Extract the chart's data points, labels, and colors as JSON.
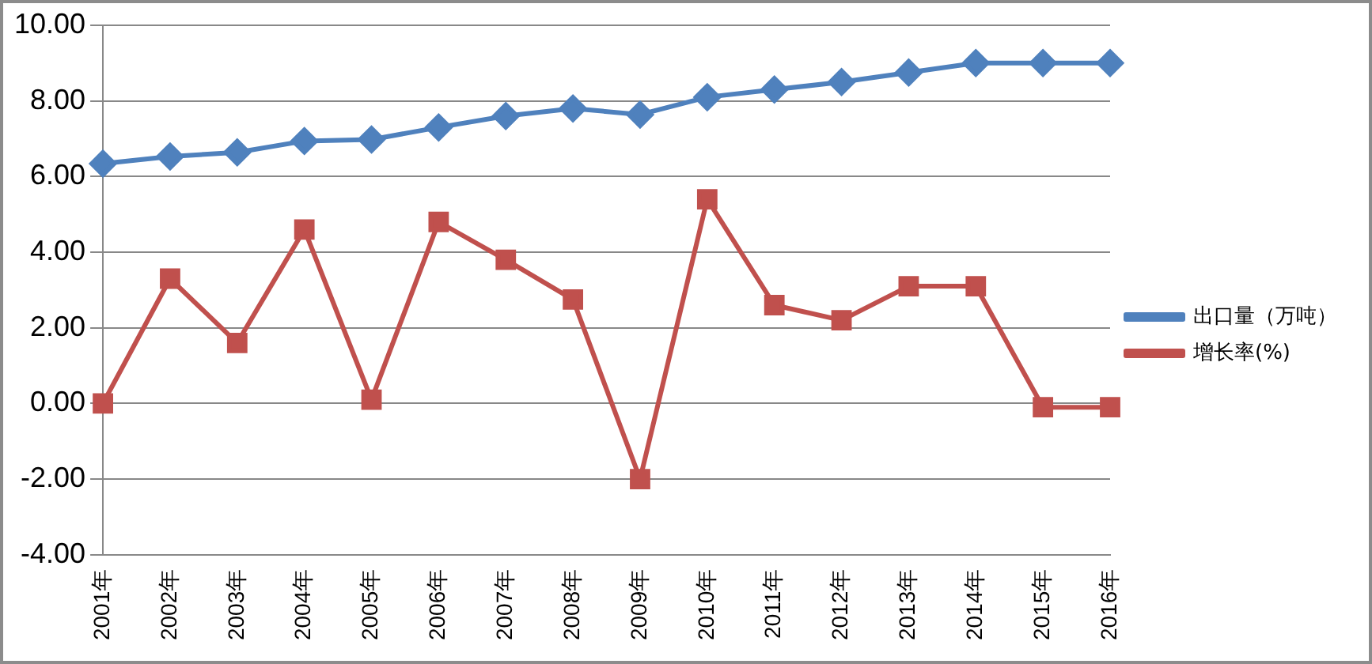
{
  "chart_data": {
    "type": "line",
    "categories": [
      "2001年",
      "2002年",
      "2003年",
      "2004年",
      "2005年",
      "2006年",
      "2007年",
      "2008年",
      "2009年",
      "2010年",
      "2011年",
      "2012年",
      "2013年",
      "2014年",
      "2015年",
      "2016年"
    ],
    "series": [
      {
        "name": "出口量（万吨）",
        "color": "#4f81bd",
        "marker": "diamond",
        "values": [
          6.34,
          6.53,
          6.64,
          6.94,
          6.98,
          7.3,
          7.6,
          7.8,
          7.64,
          8.1,
          8.3,
          8.5,
          8.75,
          9.0,
          9.0,
          9.0
        ]
      },
      {
        "name": "增长率(%)",
        "color": "#c0504d",
        "marker": "square",
        "values": [
          0,
          3.3,
          1.6,
          4.6,
          0.1,
          4.8,
          3.8,
          2.75,
          -2.0,
          5.4,
          2.6,
          2.2,
          3.1,
          3.1,
          -0.1,
          -0.1
        ]
      }
    ],
    "ylim": [
      -4,
      10
    ],
    "yticks": [
      {
        "value": -4,
        "label": "-4.00"
      },
      {
        "value": -2,
        "label": "-2.00"
      },
      {
        "value": 0,
        "label": "0.00"
      },
      {
        "value": 2,
        "label": "2.00"
      },
      {
        "value": 4,
        "label": "4.00"
      },
      {
        "value": 6,
        "label": "6.00"
      },
      {
        "value": 8,
        "label": "8.00"
      },
      {
        "value": 10,
        "label": "10.00"
      }
    ],
    "grid": "y",
    "legend": "right",
    "line_style": "solid"
  }
}
